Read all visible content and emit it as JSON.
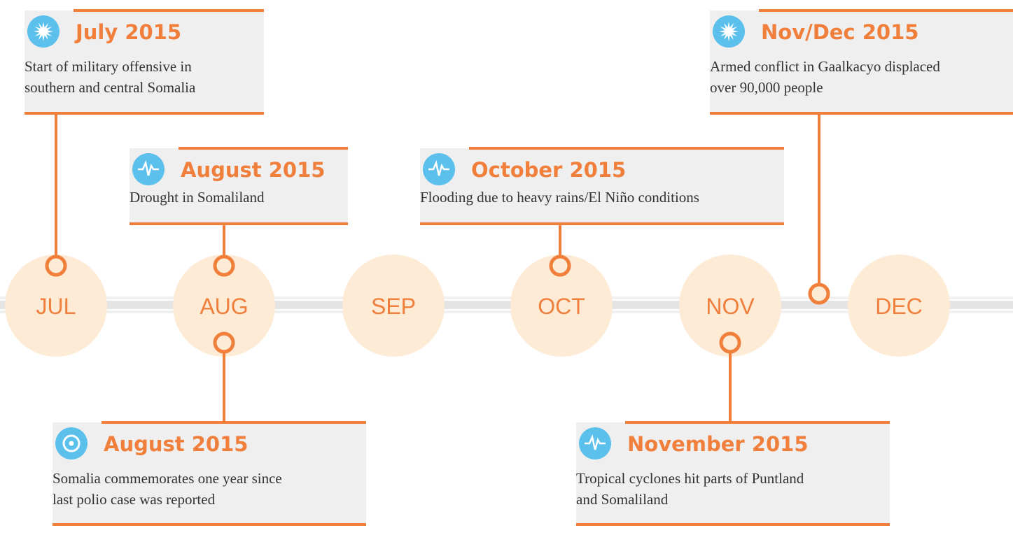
{
  "months": [
    "JUL",
    "AUG",
    "SEP",
    "OCT",
    "NOV",
    "DEC"
  ],
  "events": [
    {
      "title": "July 2015",
      "description": [
        "Start of military offensive in",
        "southern and central Somalia"
      ]
    },
    {
      "title": "August 2015",
      "description": [
        "Drought in Somaliland"
      ]
    },
    {
      "title": "October 2015",
      "description": [
        "Flooding due to heavy rains/El Niño conditions"
      ]
    },
    {
      "title": "Nov/Dec 2015",
      "description": [
        "Armed conflict in Gaalkacyo displaced",
        "over 90,000 people"
      ]
    },
    {
      "title": "August 2015",
      "description": [
        "Somalia commemorates one year since",
        "last polio case was reported"
      ]
    },
    {
      "title": "November 2015",
      "description": [
        "Tropical cyclones hit parts of Puntland",
        "and Somaliland"
      ]
    }
  ]
}
